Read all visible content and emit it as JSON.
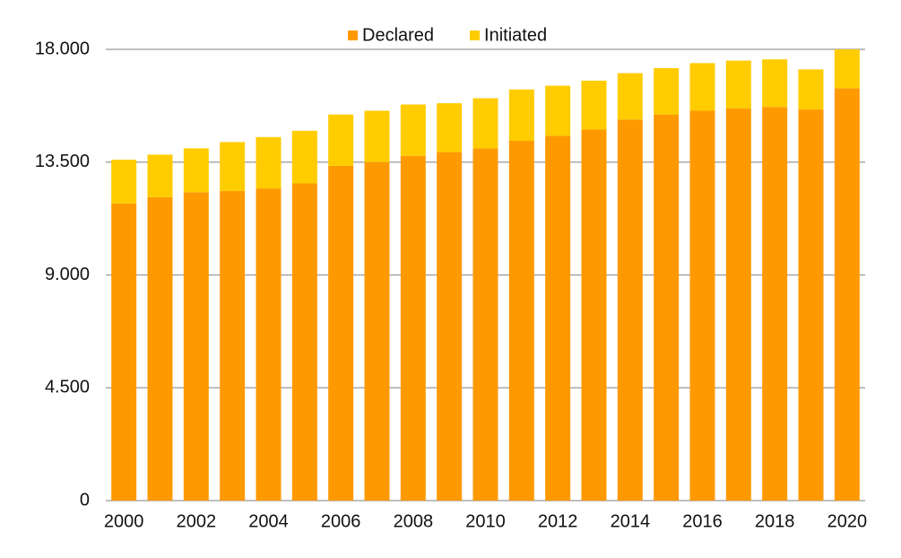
{
  "chart_data": {
    "type": "stacked_bar",
    "categories": [
      "2000",
      null,
      "2002",
      null,
      "2004",
      null,
      "2006",
      null,
      "2008",
      null,
      "2010",
      null,
      "2012",
      null,
      "2014",
      null,
      "2016",
      null,
      "2018",
      null,
      "2020"
    ],
    "series": [
      {
        "name": "Declared",
        "color": "#ff9900",
        "values": [
          11850,
          12100,
          12300,
          12350,
          12450,
          12650,
          13350,
          13500,
          13750,
          13900,
          14050,
          14350,
          14550,
          14800,
          15200,
          15400,
          15550,
          15650,
          15700,
          15600,
          16450
        ]
      },
      {
        "name": "Initiated",
        "color": "#ffcc00",
        "values": [
          1750,
          1700,
          1750,
          1950,
          2050,
          2100,
          2050,
          2050,
          2050,
          1950,
          2000,
          2050,
          2000,
          1950,
          1850,
          1850,
          1900,
          1900,
          1900,
          1600,
          1550
        ]
      }
    ],
    "ylim": [
      0,
      18000
    ],
    "yticks": [
      0,
      {
        "value": 4500,
        "label": "4.500"
      },
      {
        "value": 9000,
        "label": "9.000"
      },
      {
        "value": 13500,
        "label": "13.500"
      },
      {
        "value": 18000,
        "label": "18.000"
      }
    ],
    "grid": true,
    "legend": "top"
  }
}
